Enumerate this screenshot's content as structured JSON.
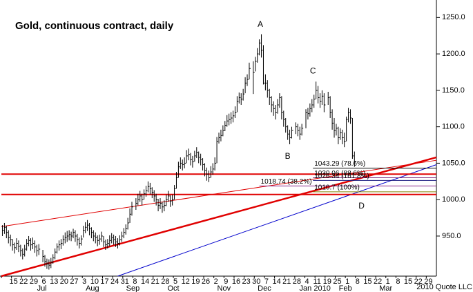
{
  "chart_data": {
    "type": "ohlc",
    "title": "Gold, continuous contract, daily",
    "footer": "2010 Quote LLC",
    "color": "#000000",
    "categories": [
      null,
      "15",
      "22",
      "29",
      "6",
      "13",
      "20",
      "27",
      "3",
      "10",
      "17",
      "24",
      "31",
      "8",
      "14",
      "21",
      "28",
      "5",
      "12",
      "19",
      "26",
      "2",
      "9",
      "16",
      "23",
      "30",
      "7",
      "14",
      "21",
      "28",
      "4",
      "11",
      "19",
      "25",
      "1",
      "8",
      "15",
      "22",
      "1",
      "8",
      "15",
      "22",
      "29"
    ],
    "months": [
      null,
      null,
      null,
      null,
      "Jul",
      null,
      null,
      null,
      null,
      "Aug",
      null,
      null,
      null,
      "Sep",
      null,
      null,
      null,
      "Oct",
      null,
      null,
      null,
      null,
      "Nov",
      null,
      null,
      null,
      "Dec",
      null,
      null,
      null,
      null,
      "Jan 2010",
      null,
      null,
      "Feb",
      null,
      null,
      null,
      "Mar",
      null,
      null,
      null,
      null
    ],
    "high": [
      [
        965,
        968,
        964,
        958,
        952
      ],
      [
        946,
        941,
        947,
        944,
        938
      ],
      [
        933,
        938,
        946,
        950,
        947
      ],
      [
        948,
        944,
        938,
        939,
        null
      ],
      [
        931,
        924,
        919,
        918,
        920
      ],
      [
        925,
        933,
        940,
        944,
        946
      ],
      [
        951,
        955,
        957,
        958,
        956
      ],
      [
        960,
        958,
        953,
        948,
        951
      ],
      [
        964,
        969,
        972,
        968,
        962
      ],
      [
        958,
        955,
        951,
        952,
        956
      ],
      [
        950,
        945,
        946,
        951,
        954
      ],
      [
        952,
        950,
        947,
        951,
        956
      ],
      [
        961,
        966,
        975,
        988,
        997
      ],
      [
        null,
        1002,
        1008,
        1012,
        1008
      ],
      [
        1014,
        1019,
        1025,
        1023,
        1017
      ],
      [
        1013,
        1008,
        1001,
        1002,
        997
      ],
      [
        999,
        1007,
        1012,
        1006,
        1007
      ],
      [
        1020,
        1038,
        1052,
        1058,
        1055
      ],
      [
        1058,
        1068,
        1070,
        1064,
        1060
      ],
      [
        1067,
        1072,
        1066,
        1063,
        1057
      ],
      [
        1050,
        1044,
        1040,
        1046,
        1050
      ],
      [
        1058,
        1086,
        1092,
        1096,
        1102
      ],
      [
        1108,
        1116,
        1118,
        1120,
        1122
      ],
      [
        1128,
        1142,
        1147,
        1146,
        1152
      ],
      [
        1168,
        1172,
        1188,
        null,
        1190
      ],
      [
        1196,
        1208,
        1220,
        1227,
        1212
      ],
      [
        1172,
        1164,
        1152,
        1142,
        1135
      ],
      [
        1130,
        1138,
        1146,
        1142,
        1122
      ],
      [
        1112,
        1102,
        1096,
        1100,
        null
      ],
      [
        1106,
        1104,
        1100,
        1104,
        null
      ],
      [
        1124,
        1126,
        1132,
        1138,
        1144
      ],
      [
        1162,
        1156,
        1146,
        1150,
        1146
      ],
      [
        null,
        1148,
        1142,
        1124,
        1112
      ],
      [
        1104,
        1100,
        1098,
        1096,
        1092
      ],
      [
        1114,
        1126,
        1124,
        1112,
        1066
      ],
      null,
      null,
      null,
      null,
      null,
      null,
      null,
      null
    ],
    "low": [
      [
        950,
        953,
        947,
        940,
        936
      ],
      [
        930,
        926,
        931,
        928,
        922
      ],
      [
        918,
        922,
        930,
        936,
        930
      ],
      [
        932,
        927,
        922,
        924,
        null
      ],
      [
        914,
        908,
        905,
        904,
        906
      ],
      [
        912,
        918,
        926,
        930,
        932
      ],
      [
        937,
        940,
        942,
        944,
        943
      ],
      [
        947,
        942,
        937,
        933,
        937
      ],
      [
        948,
        954,
        957,
        951,
        947
      ],
      [
        943,
        940,
        936,
        938,
        942
      ],
      [
        935,
        931,
        933,
        936,
        940
      ],
      [
        938,
        935,
        933,
        937,
        942
      ],
      [
        947,
        952,
        959,
        968,
        978
      ],
      [
        null,
        986,
        992,
        997,
        992
      ],
      [
        1000,
        1004,
        1010,
        1007,
        1002
      ],
      [
        997,
        992,
        984,
        987,
        982
      ],
      [
        984,
        991,
        997,
        990,
        992
      ],
      [
        1000,
        1015,
        1030,
        1042,
        1040
      ],
      [
        1043,
        1050,
        1054,
        1047,
        1044
      ],
      [
        1052,
        1057,
        1050,
        1047,
        1040
      ],
      [
        1032,
        1026,
        1024,
        1030,
        1034
      ],
      [
        1040,
        1050,
        1077,
        1080,
        1087
      ],
      [
        1094,
        1100,
        1102,
        1104,
        1106
      ],
      [
        1112,
        1120,
        1132,
        1130,
        1136
      ],
      [
        1146,
        1156,
        1165,
        null,
        1145
      ],
      [
        1176,
        1188,
        1198,
        1195,
        1158
      ],
      [
        1150,
        1140,
        1130,
        1120,
        1115
      ],
      [
        1110,
        1118,
        1126,
        1110,
        1100
      ],
      [
        1092,
        1082,
        1076,
        1084,
        null
      ],
      [
        1090,
        1087,
        1082,
        1088,
        null
      ],
      [
        1098,
        1110,
        1114,
        1120,
        1126
      ],
      [
        1138,
        1132,
        1126,
        1130,
        1120
      ],
      [
        null,
        1130,
        1112,
        1096,
        1085
      ],
      [
        1088,
        1076,
        1082,
        1076,
        1072
      ],
      [
        1080,
        1106,
        1104,
        1056,
        1045
      ],
      null,
      null,
      null,
      null,
      null,
      null,
      null,
      null
    ],
    "close": [
      [
        958,
        962,
        955,
        948,
        945
      ],
      [
        938,
        934,
        940,
        936,
        930
      ],
      [
        925,
        932,
        940,
        944,
        938
      ],
      [
        940,
        935,
        930,
        932,
        null
      ],
      [
        922,
        915,
        912,
        910,
        914
      ],
      [
        920,
        928,
        935,
        938,
        940
      ],
      [
        945,
        948,
        950,
        952,
        950
      ],
      [
        955,
        950,
        945,
        940,
        946
      ],
      [
        958,
        962,
        965,
        960,
        955
      ],
      [
        950,
        948,
        944,
        946,
        950
      ],
      [
        942,
        938,
        940,
        944,
        948
      ],
      [
        945,
        942,
        940,
        945,
        950
      ],
      [
        955,
        960,
        968,
        980,
        990
      ],
      [
        null,
        995,
        1000,
        1005,
        1000
      ],
      [
        1008,
        1012,
        1018,
        1015,
        1010
      ],
      [
        1005,
        1000,
        992,
        995,
        990
      ],
      [
        992,
        1000,
        1005,
        998,
        1000
      ],
      [
        1015,
        1030,
        1045,
        1050,
        1048
      ],
      [
        1050,
        1060,
        1062,
        1055,
        1052
      ],
      [
        1060,
        1065,
        1058,
        1055,
        1048
      ],
      [
        1040,
        1035,
        1030,
        1038,
        1042
      ],
      [
        1050,
        1080,
        1085,
        1088,
        1095
      ],
      [
        1102,
        1108,
        1110,
        1112,
        1115
      ],
      [
        1120,
        1135,
        1140,
        1138,
        1145
      ],
      [
        1160,
        1165,
        1180,
        null,
        1175
      ],
      [
        1190,
        1200,
        1215,
        1205,
        1160
      ],
      [
        1160,
        1150,
        1140,
        1130,
        1125
      ],
      [
        1120,
        1130,
        1140,
        1120,
        1110
      ],
      [
        1100,
        1090,
        1085,
        1095,
        null
      ],
      [
        1100,
        1095,
        1090,
        1098,
        null
      ],
      [
        1120,
        1118,
        1125,
        1130,
        1138
      ],
      [
        1150,
        1140,
        1135,
        1142,
        1130
      ],
      [
        null,
        1140,
        1120,
        1105,
        1095
      ],
      [
        1098,
        1085,
        1092,
        1085,
        1080
      ],
      [
        1110,
        1120,
        1112,
        1060,
        1052
      ],
      null,
      null,
      null,
      null,
      null,
      null,
      null,
      null
    ],
    "ylim": [
      895,
      1274
    ],
    "yticks": [
      {
        "value": 950,
        "label": "950.0"
      },
      {
        "value": 1000,
        "label": "1000.0"
      },
      {
        "value": 1050,
        "label": "1050.0"
      },
      {
        "value": 1100,
        "label": "1100.0"
      },
      {
        "value": 1150,
        "label": "1150.0"
      },
      {
        "value": 1200,
        "label": "1200.0"
      },
      {
        "value": 1250,
        "label": "1250.0"
      }
    ],
    "grid": false,
    "trendlines": [
      {
        "color": "#e00000",
        "width": 2.5,
        "points": [
          [
            0,
            895
          ],
          [
            43,
            1058
          ]
        ]
      },
      {
        "color": "#e00000",
        "width": 1,
        "points": [
          [
            0,
            963
          ],
          [
            43,
            1054
          ]
        ]
      },
      {
        "color": "#0000cc",
        "width": 1,
        "points": [
          [
            11.5,
            895
          ],
          [
            43,
            1048
          ]
        ]
      },
      {
        "color": "#e00000",
        "width": 2,
        "points": [
          [
            0,
            1035
          ],
          [
            43,
            1035
          ]
        ]
      },
      {
        "color": "#e00000",
        "width": 2,
        "points": [
          [
            0,
            1007
          ],
          [
            43,
            1007
          ]
        ]
      }
    ],
    "levels": [
      {
        "label": "1043.29 (78.6%)",
        "value": 1043.29,
        "color": "#000000",
        "from": 30.8
      },
      {
        "label": "1030.06 (88.6%)",
        "value": 1030.06,
        "color": "#7a2a7a",
        "from": 30.8
      },
      {
        "label": "1026.34 (161.8%)",
        "value": 1026.34,
        "color": "#1a1a80",
        "from": 30.8
      },
      {
        "label": "1018.74 (38.2%)",
        "value": 1018.74,
        "color": "#8a2a8a",
        "from": 25.5
      },
      {
        "label": "1010.7 (100%)",
        "value": 1010.7,
        "color": "#808000",
        "from": 30.8
      }
    ],
    "annotations": [
      {
        "text": "A",
        "x": 25.6,
        "y": 1240
      },
      {
        "text": "B",
        "x": 28.3,
        "y": 1059
      },
      {
        "text": "C",
        "x": 30.8,
        "y": 1176
      },
      {
        "text": "D",
        "x": 35.6,
        "y": 991
      }
    ]
  }
}
